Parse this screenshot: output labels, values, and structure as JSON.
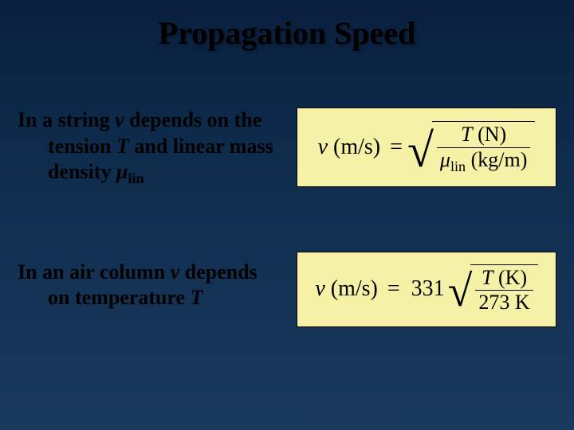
{
  "slide": {
    "title": "Propagation Speed",
    "background_gradient": [
      "#0a1f3d",
      "#0d2a4a",
      "#1a3a5c"
    ],
    "title_color": "#000000",
    "title_fontsize": 40,
    "text_color": "#000000",
    "text_fontsize": 26,
    "formula_box_bg": "#f5f2a8",
    "formula_box_border": "#000000"
  },
  "section1": {
    "line1_prefix": "In a string ",
    "line1_var": "v",
    "line1_suffix": " depends on the",
    "line2_prefix": "tension ",
    "line2_var": "T",
    "line2_suffix": " and linear mass",
    "line3_prefix": "density ",
    "line3_var": "μ",
    "line3_sub": "lin",
    "formula": {
      "lhs_var": "v",
      "lhs_unit": " (m/s)",
      "equals": "=",
      "numerator_var": "T",
      "numerator_unit": " (N)",
      "denominator_var": "μ",
      "denominator_sub": "lin",
      "denominator_unit": " (kg/m)"
    }
  },
  "section2": {
    "line1_prefix": "In an air column ",
    "line1_var": "v",
    "line1_suffix": " depends",
    "line2_prefix": "on temperature ",
    "line2_var": "T",
    "formula": {
      "lhs_var": "v",
      "lhs_unit": " (m/s)",
      "equals": "=",
      "coefficient": "331",
      "numerator_var": "T",
      "numerator_unit": " (K)",
      "denominator": "273 K"
    }
  }
}
